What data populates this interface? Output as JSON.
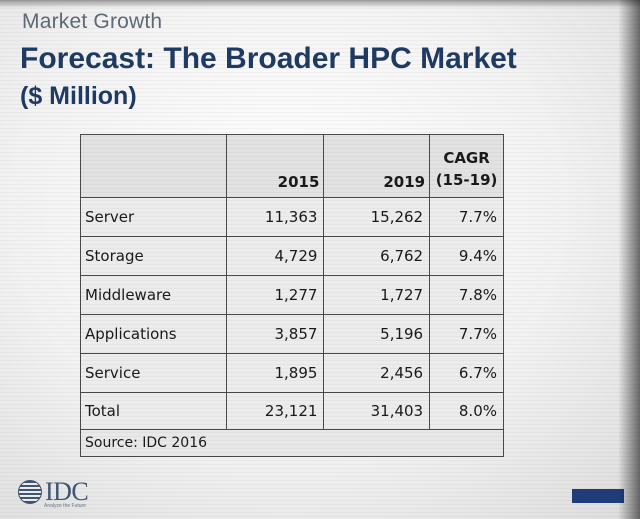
{
  "slide": {
    "kicker": "Market Growth",
    "title": "Forecast: The Broader HPC Market",
    "subtitle": "($ Million)"
  },
  "table": {
    "header": {
      "col_2015": "2015",
      "col_2019": "2019",
      "cagr_line1": "CAGR",
      "cagr_line2": "(15-19)"
    },
    "rows": [
      {
        "label": "Server",
        "y2015": "11,363",
        "y2019": "15,262",
        "cagr": "7.7%"
      },
      {
        "label": "Storage",
        "y2015": "4,729",
        "y2019": "6,762",
        "cagr": "9.4%"
      },
      {
        "label": "Middleware",
        "y2015": "1,277",
        "y2019": "1,727",
        "cagr": "7.8%"
      },
      {
        "label": "Applications",
        "y2015": "3,857",
        "y2019": "5,196",
        "cagr": "7.7%"
      },
      {
        "label": "Service",
        "y2015": "1,895",
        "y2019": "2,456",
        "cagr": "6.7%"
      }
    ],
    "total": {
      "label": "Total",
      "y2015": "23,121",
      "y2019": "31,403",
      "cagr": "8.0%"
    },
    "source": "Source: IDC 2016"
  },
  "logo": {
    "name": "IDC",
    "tagline": "Analyze the Future",
    "icon": "globe-icon"
  },
  "colors": {
    "title": "#1f3b63",
    "kicker": "#5d6a78",
    "accent_bar": "#1f3d7a"
  }
}
